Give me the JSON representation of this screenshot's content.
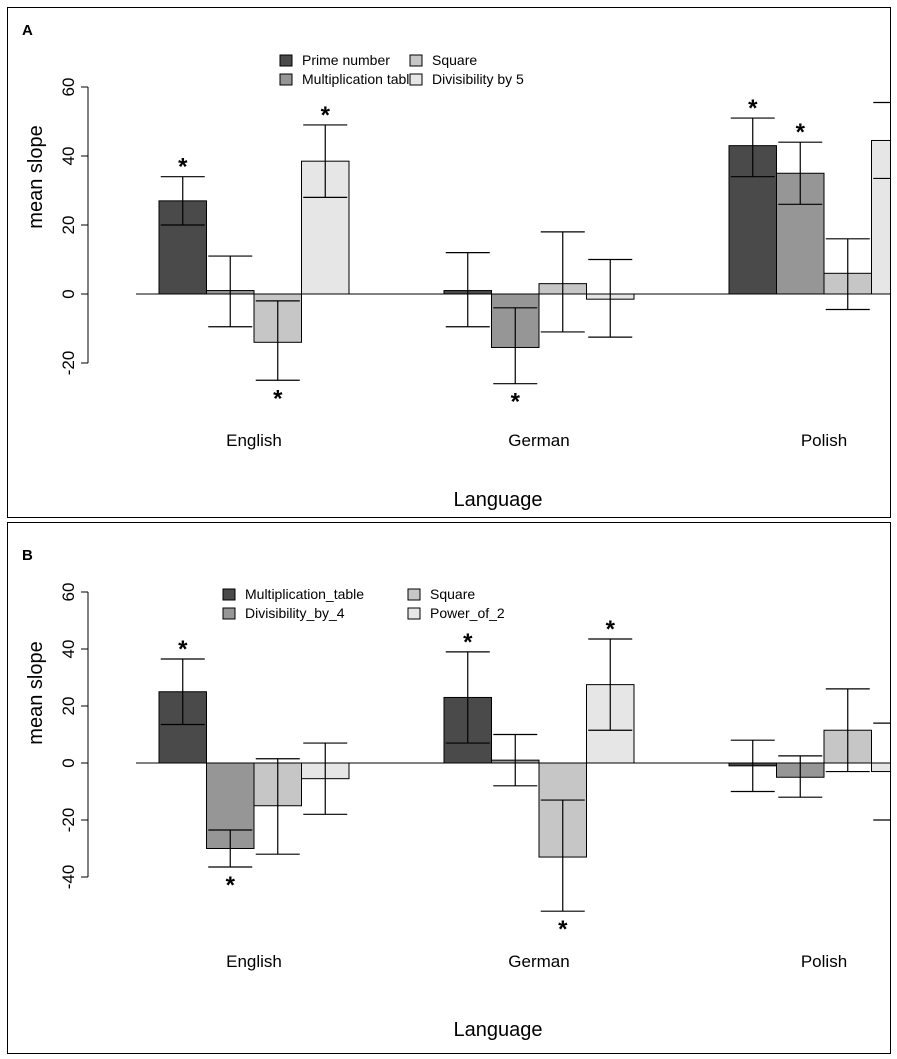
{
  "chart_data": [
    {
      "panel_label": "A",
      "type": "bar",
      "xlabel": "Language",
      "ylabel": "mean slope",
      "ylim": [
        -25,
        60
      ],
      "yticks": [
        -20,
        0,
        20,
        40,
        60
      ],
      "categories": [
        "English",
        "German",
        "Polish"
      ],
      "colors": [
        "#4a4a4a",
        "#969696",
        "#c6c6c6",
        "#e6e6e6"
      ],
      "legend_position": "top-center",
      "series": [
        {
          "name": "Prime number",
          "values": [
            27,
            1,
            43
          ],
          "err_low": [
            20,
            -9.5,
            34
          ],
          "err_high": [
            34,
            12,
            51
          ],
          "significant": [
            true,
            false,
            true
          ]
        },
        {
          "name": "Multiplication table",
          "values": [
            1,
            -15.5,
            35
          ],
          "err_low": [
            -9.5,
            -26,
            26
          ],
          "err_high": [
            11,
            -4,
            44
          ],
          "significant": [
            false,
            true,
            true
          ]
        },
        {
          "name": "Square",
          "values": [
            -14,
            3,
            6
          ],
          "err_low": [
            -25,
            -11,
            -4.5
          ],
          "err_high": [
            -2,
            18,
            16
          ],
          "significant": [
            true,
            false,
            false
          ]
        },
        {
          "name": "Divisibility by 5",
          "values": [
            38.5,
            -1.5,
            44.5
          ],
          "err_low": [
            28,
            -12.5,
            33.5
          ],
          "err_high": [
            49,
            10,
            55.5
          ],
          "significant": [
            true,
            false,
            true
          ]
        }
      ],
      "significance_marker": "*"
    },
    {
      "panel_label": "B",
      "type": "bar",
      "xlabel": "Language",
      "ylabel": "mean slope",
      "ylim": [
        -52,
        60
      ],
      "yticks": [
        -40,
        -20,
        0,
        20,
        40,
        60
      ],
      "categories": [
        "English",
        "German",
        "Polish"
      ],
      "colors": [
        "#4a4a4a",
        "#969696",
        "#c6c6c6",
        "#e6e6e6"
      ],
      "legend_position": "top-center",
      "series": [
        {
          "name": "Multiplication_table",
          "values": [
            25,
            23,
            -1
          ],
          "err_low": [
            13.5,
            7,
            -10
          ],
          "err_high": [
            36.5,
            39,
            8
          ],
          "significant": [
            true,
            true,
            false
          ]
        },
        {
          "name": "Divisibility_by_4",
          "values": [
            -30,
            1,
            -5
          ],
          "err_low": [
            -36.5,
            -8,
            -12
          ],
          "err_high": [
            -23.5,
            10,
            2.5
          ],
          "significant": [
            true,
            false,
            false
          ]
        },
        {
          "name": "Square",
          "values": [
            -15,
            -33,
            11.5
          ],
          "err_low": [
            -32,
            -52,
            -3
          ],
          "err_high": [
            1.5,
            -13,
            26
          ],
          "significant": [
            false,
            true,
            false
          ]
        },
        {
          "name": "Power_of_2",
          "values": [
            -5.5,
            27.5,
            -3
          ],
          "err_low": [
            -18,
            11.5,
            -20
          ],
          "err_high": [
            7,
            43.5,
            14
          ],
          "significant": [
            false,
            true,
            false
          ]
        }
      ],
      "significance_marker": "*"
    }
  ]
}
